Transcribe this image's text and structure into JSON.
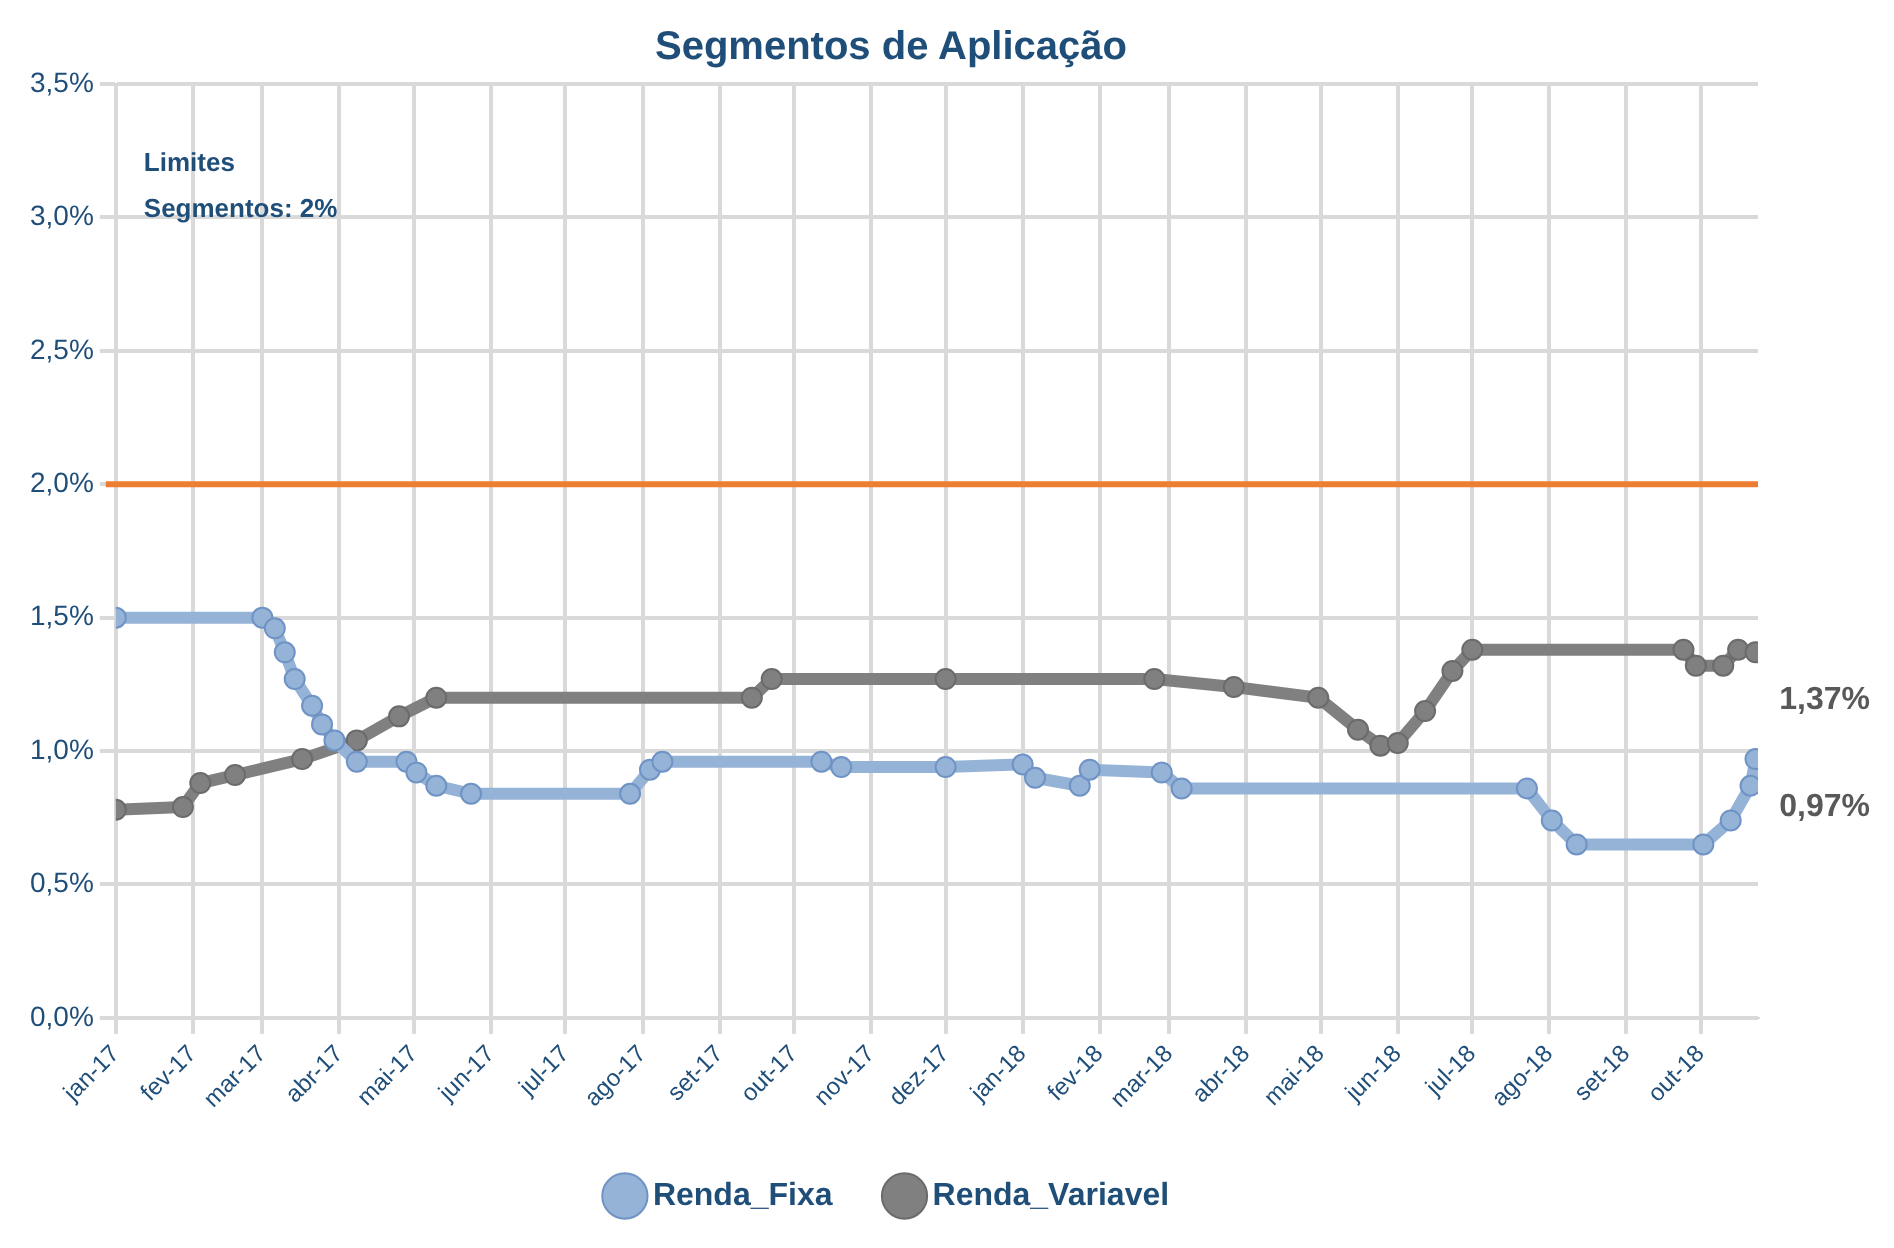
{
  "chart_data": {
    "type": "line",
    "title": "Segmentos de Aplicação",
    "annotations": [
      "Limites",
      "Segmentos: 2%"
    ],
    "xlim": [
      "2017-01-01",
      "2018-10-24"
    ],
    "xticks": [
      {
        "value": "2017-01-01",
        "label": "jan-17"
      },
      {
        "value": "2017-02-01",
        "label": "fev-17"
      },
      {
        "value": "2017-03-01",
        "label": "mar-17"
      },
      {
        "value": "2017-04-01",
        "label": "abr-17"
      },
      {
        "value": "2017-05-01",
        "label": "mai-17"
      },
      {
        "value": "2017-06-01",
        "label": "jun-17"
      },
      {
        "value": "2017-07-01",
        "label": "jul-17"
      },
      {
        "value": "2017-08-01",
        "label": "ago-17"
      },
      {
        "value": "2017-09-01",
        "label": "set-17"
      },
      {
        "value": "2017-10-01",
        "label": "out-17"
      },
      {
        "value": "2017-11-01",
        "label": "nov-17"
      },
      {
        "value": "2017-12-01",
        "label": "dez-17"
      },
      {
        "value": "2018-01-01",
        "label": "jan-18"
      },
      {
        "value": "2018-02-01",
        "label": "fev-18"
      },
      {
        "value": "2018-03-01",
        "label": "mar-18"
      },
      {
        "value": "2018-04-01",
        "label": "abr-18"
      },
      {
        "value": "2018-05-01",
        "label": "mai-18"
      },
      {
        "value": "2018-06-01",
        "label": "jun-18"
      },
      {
        "value": "2018-07-01",
        "label": "jul-18"
      },
      {
        "value": "2018-08-01",
        "label": "ago-18"
      },
      {
        "value": "2018-09-01",
        "label": "set-18"
      },
      {
        "value": "2018-10-01",
        "label": "out-18"
      }
    ],
    "ylim": [
      0,
      3.5
    ],
    "yticks": [
      {
        "value": 0,
        "label": "0,0%"
      },
      {
        "value": 0.5,
        "label": "0,5%"
      },
      {
        "value": 1,
        "label": "1,0%"
      },
      {
        "value": 1.5,
        "label": "1,5%"
      },
      {
        "value": 2,
        "label": "2,0%"
      },
      {
        "value": 2.5,
        "label": "2,5%"
      },
      {
        "value": 3,
        "label": "3,0%"
      },
      {
        "value": 3.5,
        "label": "3,5%"
      }
    ],
    "grid": true,
    "legend": "bottom",
    "marker": "circle",
    "line_style": "solid",
    "ref_lines": [
      {
        "axis": "y",
        "value": 2,
        "label": null,
        "color": "#ed7d31"
      }
    ],
    "series": [
      {
        "name": "Renda_Fixa",
        "color": "#95b3d7",
        "x": [
          "2017-01-01",
          "2017-03-01",
          "2017-03-06",
          "2017-03-10",
          "2017-03-14",
          "2017-03-21",
          "2017-03-25",
          "2017-03-30",
          "2017-04-08",
          "2017-04-28",
          "2017-05-02",
          "2017-05-10",
          "2017-05-24",
          "2017-07-27",
          "2017-08-04",
          "2017-08-09",
          "2017-10-12",
          "2017-10-20",
          "2017-12-01",
          "2018-01-01",
          "2018-01-06",
          "2018-01-24",
          "2018-01-28",
          "2018-02-26",
          "2018-03-06",
          "2018-07-23",
          "2018-08-02",
          "2018-08-12",
          "2018-10-02",
          "2018-10-13",
          "2018-10-21",
          "2018-10-23"
        ],
        "values": [
          1.5,
          1.5,
          1.46,
          1.37,
          1.27,
          1.17,
          1.1,
          1.04,
          0.96,
          0.96,
          0.92,
          0.87,
          0.84,
          0.84,
          0.93,
          0.96,
          0.96,
          0.94,
          0.94,
          0.95,
          0.9,
          0.87,
          0.93,
          0.92,
          0.86,
          0.86,
          0.74,
          0.65,
          0.65,
          0.74,
          0.87,
          0.97
        ],
        "value_labels": [
          null,
          null,
          null,
          null,
          null,
          null,
          null,
          null,
          null,
          null,
          null,
          null,
          null,
          null,
          null,
          null,
          null,
          null,
          null,
          null,
          null,
          null,
          null,
          null,
          null,
          null,
          null,
          null,
          null,
          null,
          null,
          "0,97%"
        ]
      },
      {
        "name": "Renda_Variavel",
        "color": "#808080",
        "x": [
          "2017-01-01",
          "2017-01-28",
          "2017-02-04",
          "2017-02-18",
          "2017-03-17",
          "2017-04-08",
          "2017-04-25",
          "2017-05-10",
          "2017-09-14",
          "2017-09-22",
          "2017-12-01",
          "2018-02-23",
          "2018-03-27",
          "2018-04-30",
          "2018-05-16",
          "2018-05-25",
          "2018-06-01",
          "2018-06-12",
          "2018-06-23",
          "2018-07-01",
          "2018-09-24",
          "2018-09-29",
          "2018-10-10",
          "2018-10-16",
          "2018-10-23"
        ],
        "values": [
          0.78,
          0.79,
          0.88,
          0.91,
          0.97,
          1.04,
          1.13,
          1.2,
          1.2,
          1.27,
          1.27,
          1.27,
          1.24,
          1.2,
          1.08,
          1.02,
          1.03,
          1.15,
          1.3,
          1.38,
          1.38,
          1.32,
          1.32,
          1.38,
          1.37
        ],
        "value_labels": [
          null,
          null,
          null,
          null,
          null,
          null,
          null,
          null,
          null,
          null,
          null,
          null,
          null,
          null,
          null,
          null,
          null,
          null,
          null,
          null,
          null,
          null,
          null,
          null,
          "1,37%"
        ]
      }
    ]
  }
}
